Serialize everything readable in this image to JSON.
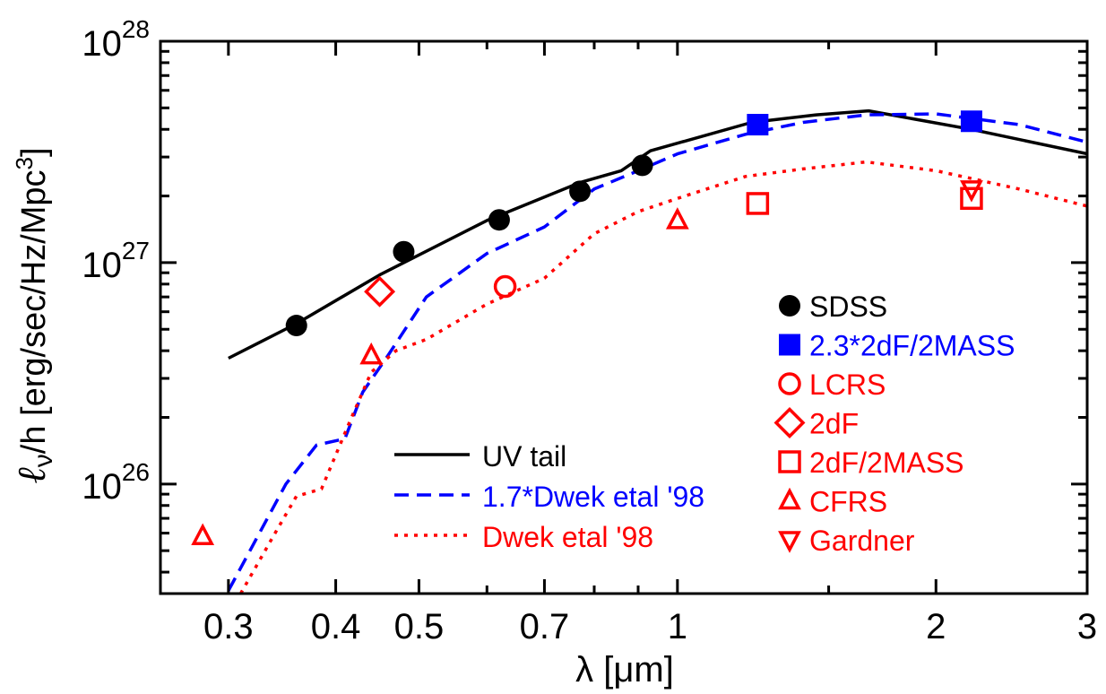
{
  "chart_data": {
    "type": "line",
    "x_scale": "log",
    "y_scale": "log",
    "xlim": [
      0.25,
      3.0
    ],
    "ylim": [
      3.2e+25,
      1e+28
    ],
    "xlabel": "λ [μm]",
    "ylabel": {
      "ell": "ℓ",
      "nu": "ν",
      "rest": "/h [erg/sec/Hz/Mpc",
      "sup": "3",
      "close": "]"
    },
    "x_ticks": [
      {
        "value": 0.3,
        "label": "0.3"
      },
      {
        "value": 0.4,
        "label": "0.4"
      },
      {
        "value": 0.5,
        "label": "0.5"
      },
      {
        "value": 0.7,
        "label": "0.7"
      },
      {
        "value": 1.0,
        "label": "1"
      },
      {
        "value": 2.0,
        "label": "2"
      },
      {
        "value": 3.0,
        "label": "3"
      }
    ],
    "x_minor_ticks": [
      0.6,
      0.8,
      0.9,
      1.5
    ],
    "y_major_ticks": [
      {
        "value": 1e+26,
        "base": "10",
        "exp": "26"
      },
      {
        "value": 1e+27,
        "base": "10",
        "exp": "27"
      },
      {
        "value": 1e+28,
        "base": "10",
        "exp": "28"
      }
    ],
    "y_minor_ticks": [
      4e+25,
      5e+25,
      6e+25,
      7e+25,
      8e+25,
      9e+25,
      2e+26,
      3e+26,
      4e+26,
      5e+26,
      6e+26,
      7e+26,
      8e+26,
      9e+26,
      2e+27,
      3e+27,
      4e+27,
      5e+27,
      6e+27,
      7e+27,
      8e+27,
      9e+27
    ],
    "lines": [
      {
        "name": "UV tail",
        "color": "#000000",
        "style": "solid",
        "x": [
          0.3,
          0.36,
          0.45,
          0.6,
          0.77,
          0.86,
          0.93,
          1.22,
          1.45,
          1.67,
          2.2,
          3.0
        ],
        "y": [
          3.7e+26,
          5.3e+26,
          8.8e+26,
          1.55e+27,
          2.3e+27,
          2.6e+27,
          3.2e+27,
          4.3e+27,
          4.65e+27,
          4.85e+27,
          4e+27,
          3.1e+27
        ]
      },
      {
        "name": "1.7*Dwek etal '98",
        "color": "#0000ff",
        "style": "dashed",
        "x": [
          0.3,
          0.35,
          0.38,
          0.41,
          0.43,
          0.46,
          0.51,
          0.6,
          0.7,
          0.8,
          0.9,
          1.0,
          1.2,
          1.4,
          1.66,
          2.0,
          2.5,
          3.0
        ],
        "y": [
          3.3e+25,
          1e+26,
          1.5e+26,
          1.6e+26,
          2.6e+26,
          3.8e+26,
          7e+26,
          1.1e+27,
          1.45e+27,
          2.15e+27,
          2.6e+27,
          3.1e+27,
          3.8e+27,
          4.3e+27,
          4.65e+27,
          4.7e+27,
          4.2e+27,
          3.5e+27
        ]
      },
      {
        "name": "Dwek etal '98",
        "color": "#ff0000",
        "style": "dotted",
        "x": [
          0.31,
          0.34,
          0.36,
          0.385,
          0.415,
          0.44,
          0.47,
          0.51,
          0.6,
          0.7,
          0.8,
          0.9,
          1.0,
          1.2,
          1.4,
          1.66,
          2.0,
          2.5,
          3.0
        ],
        "y": [
          3.2e+25,
          6e+25,
          8.8e+25,
          9.5e+25,
          1.9e+26,
          3.2e+26,
          4e+26,
          4.5e+26,
          6.5e+26,
          8.5e+26,
          1.35e+27,
          1.7e+27,
          1.95e+27,
          2.45e+27,
          2.65e+27,
          2.85e+27,
          2.6e+27,
          2.15e+27,
          1.8e+27
        ]
      }
    ],
    "points": [
      {
        "name": "SDSS",
        "marker": "filled-circle",
        "color": "#000000",
        "x": [
          0.36,
          0.48,
          0.62,
          0.77,
          0.91
        ],
        "y": [
          5.2e+26,
          1.12e+27,
          1.56e+27,
          2.1e+27,
          2.75e+27
        ]
      },
      {
        "name": "2.3*2dF/2MASS",
        "marker": "filled-square",
        "color": "#0000ff",
        "x": [
          1.24,
          2.2
        ],
        "y": [
          4.2e+27,
          4.35e+27
        ]
      },
      {
        "name": "LCRS",
        "marker": "open-circle",
        "color": "#ff0000",
        "x": [
          0.63
        ],
        "y": [
          7.8e+26
        ]
      },
      {
        "name": "2dF",
        "marker": "open-diamond",
        "color": "#ff0000",
        "x": [
          0.45
        ],
        "y": [
          7.4e+26
        ]
      },
      {
        "name": "2dF/2MASS",
        "marker": "open-square",
        "color": "#ff0000",
        "x": [
          1.24,
          2.2
        ],
        "y": [
          1.85e+27,
          1.95e+27
        ]
      },
      {
        "name": "CFRS",
        "marker": "open-triangle-up",
        "color": "#ff0000",
        "x": [
          0.28,
          0.44,
          1.0
        ],
        "y": [
          5.8e+25,
          3.8e+26,
          1.55e+27
        ]
      },
      {
        "name": "Gardner",
        "marker": "open-triangle-down",
        "color": "#ff0000",
        "x": [
          2.2
        ],
        "y": [
          2.15e+27
        ]
      }
    ],
    "legend_lines": [
      {
        "label": "UV tail",
        "color": "#000000",
        "style": "solid"
      },
      {
        "label": "1.7*Dwek etal '98",
        "color": "#0000ff",
        "style": "dashed"
      },
      {
        "label": "Dwek etal '98",
        "color": "#ff0000",
        "style": "dotted"
      }
    ],
    "legend_lines_position": "bottom-center",
    "legend_points": [
      {
        "label": "SDSS",
        "marker": "filled-circle",
        "color": "#000000"
      },
      {
        "label": "2.3*2dF/2MASS",
        "marker": "filled-square",
        "color": "#0000ff"
      },
      {
        "label": "LCRS",
        "marker": "open-circle",
        "color": "#ff0000"
      },
      {
        "label": "2dF",
        "marker": "open-diamond",
        "color": "#ff0000"
      },
      {
        "label": "2dF/2MASS",
        "marker": "open-square",
        "color": "#ff0000"
      },
      {
        "label": "CFRS",
        "marker": "open-triangle-up",
        "color": "#ff0000"
      },
      {
        "label": "Gardner",
        "marker": "open-triangle-down",
        "color": "#ff0000"
      }
    ],
    "legend_points_position": "right"
  }
}
